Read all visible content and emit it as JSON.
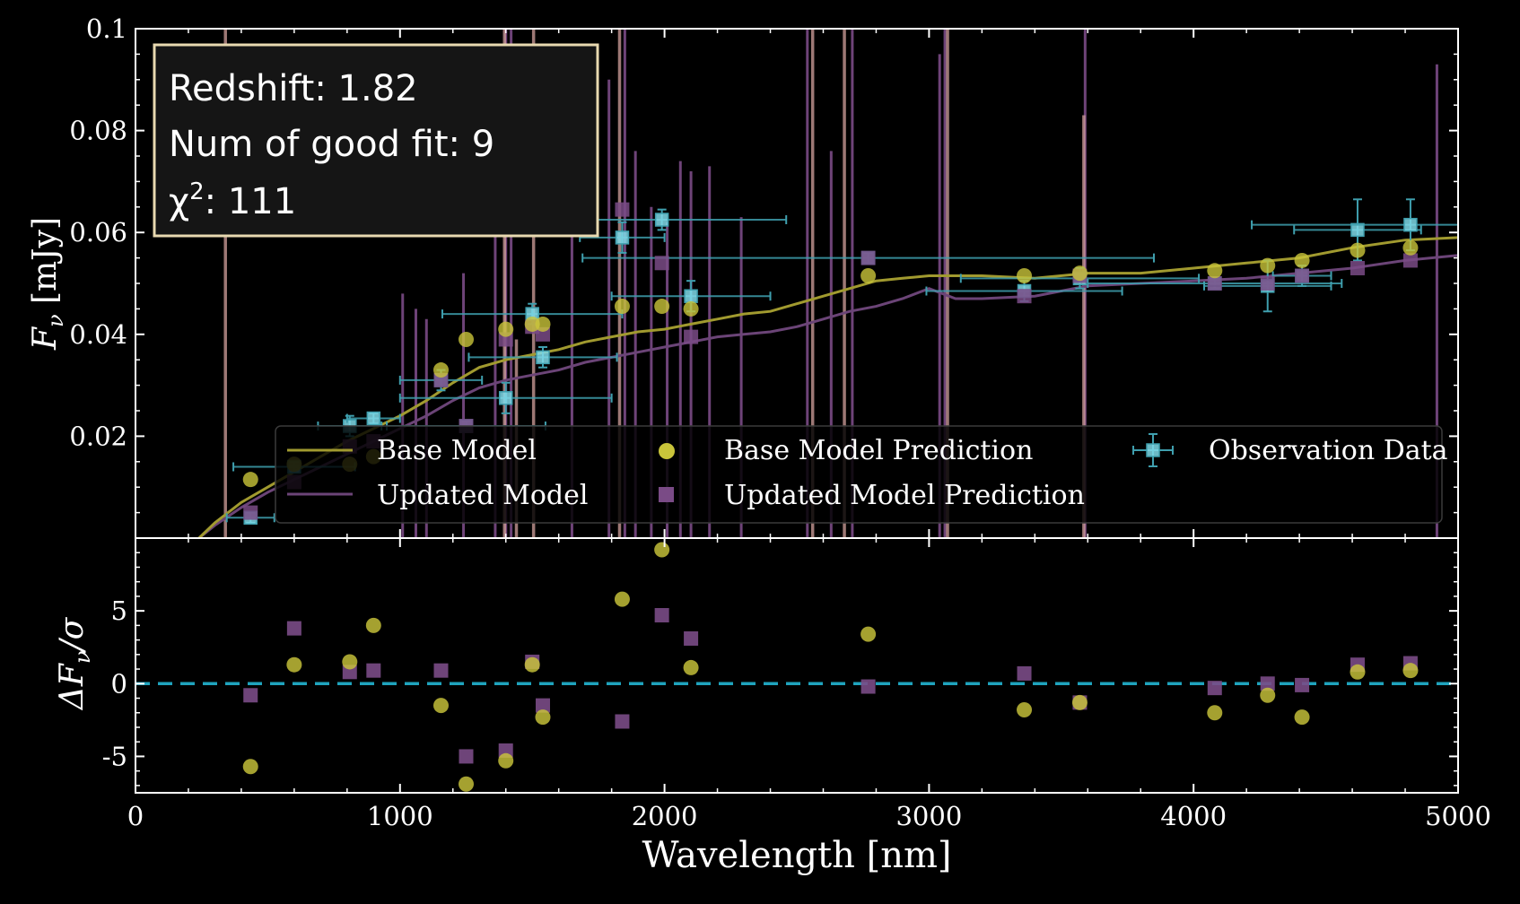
{
  "chart_data": {
    "type": "scatter",
    "xlabel": "Wavelength [nm]",
    "xlim": [
      0,
      5000
    ],
    "x_ticks": [
      {
        "value": 0,
        "label": "0"
      },
      {
        "value": 1000,
        "label": "1000"
      },
      {
        "value": 2000,
        "label": "2000"
      },
      {
        "value": 3000,
        "label": "3000"
      },
      {
        "value": 4000,
        "label": "4000"
      },
      {
        "value": 5000,
        "label": "5000"
      }
    ],
    "top_panel": {
      "ylabel_main": "F",
      "ylabel_sub": "ν",
      "ylabel_unit": " [mJy]",
      "ylim": [
        0,
        0.1
      ],
      "y_ticks": [
        {
          "value": 0.02,
          "label": "0.02"
        },
        {
          "value": 0.04,
          "label": "0.04"
        },
        {
          "value": 0.06,
          "label": "0.06"
        },
        {
          "value": 0.08,
          "label": "0.08"
        },
        {
          "value": 0.1,
          "label": "0.1"
        }
      ],
      "info_box": {
        "redshift": "Redshift: 1.82",
        "good_fit": "Num of good fit: 9",
        "chi_label": "χ",
        "chi_sup": "2",
        "chi_value": ": 111"
      },
      "legend": {
        "base_model": "Base Model",
        "updated_model": "Updated Model",
        "base_prediction": "Base Model Prediction",
        "updated_prediction": "Updated Model Prediction",
        "observation": "Observation Data"
      },
      "observations": [
        {
          "x": 435,
          "y": 0.004,
          "xerr": 90,
          "yerr": 0.001
        },
        {
          "x": 600,
          "y": 0.014,
          "xerr": 230,
          "yerr": 0.001
        },
        {
          "x": 810,
          "y": 0.022,
          "xerr": 120,
          "yerr": 0.002
        },
        {
          "x": 900,
          "y": 0.0235,
          "xerr": 100,
          "yerr": 0.001
        },
        {
          "x": 1155,
          "y": 0.031,
          "xerr": 155,
          "yerr": 0.002
        },
        {
          "x": 1250,
          "y": 0.022,
          "xerr": 300,
          "yerr": 0.001
        },
        {
          "x": 1400,
          "y": 0.0275,
          "xerr": 400,
          "yerr": 0.003
        },
        {
          "x": 1500,
          "y": 0.044,
          "xerr": 340,
          "yerr": 0.002
        },
        {
          "x": 1540,
          "y": 0.0355,
          "xerr": 280,
          "yerr": 0.002
        },
        {
          "x": 1840,
          "y": 0.059,
          "xerr": 160,
          "yerr": 0.003
        },
        {
          "x": 1990,
          "y": 0.0625,
          "xerr": 470,
          "yerr": 0.002
        },
        {
          "x": 2100,
          "y": 0.0475,
          "xerr": 300,
          "yerr": 0.003
        },
        {
          "x": 2770,
          "y": 0.055,
          "xerr": 1080,
          "yerr": 0.001
        },
        {
          "x": 3360,
          "y": 0.0485,
          "xerr": 370,
          "yerr": 0.002
        },
        {
          "x": 3570,
          "y": 0.051,
          "xerr": 450,
          "yerr": 0.002
        },
        {
          "x": 4080,
          "y": 0.05,
          "xerr": 480,
          "yerr": 0.001
        },
        {
          "x": 4280,
          "y": 0.0495,
          "xerr": 240,
          "yerr": 0.005
        },
        {
          "x": 4410,
          "y": 0.0515,
          "xerr": 110,
          "yerr": 0.002
        },
        {
          "x": 4620,
          "y": 0.0605,
          "xerr": 240,
          "yerr": 0.006
        },
        {
          "x": 4820,
          "y": 0.0615,
          "xerr": 600,
          "yerr": 0.005
        }
      ],
      "base_predictions": [
        {
          "x": 435,
          "y": 0.0115
        },
        {
          "x": 600,
          "y": 0.0145
        },
        {
          "x": 810,
          "y": 0.0145
        },
        {
          "x": 900,
          "y": 0.016
        },
        {
          "x": 1155,
          "y": 0.033
        },
        {
          "x": 1250,
          "y": 0.039
        },
        {
          "x": 1400,
          "y": 0.041
        },
        {
          "x": 1500,
          "y": 0.042
        },
        {
          "x": 1540,
          "y": 0.042
        },
        {
          "x": 1840,
          "y": 0.0455
        },
        {
          "x": 1990,
          "y": 0.0455
        },
        {
          "x": 2100,
          "y": 0.045
        },
        {
          "x": 2770,
          "y": 0.0515
        },
        {
          "x": 3360,
          "y": 0.0515
        },
        {
          "x": 3570,
          "y": 0.052
        },
        {
          "x": 4080,
          "y": 0.0525
        },
        {
          "x": 4280,
          "y": 0.0535
        },
        {
          "x": 4410,
          "y": 0.0545
        },
        {
          "x": 4620,
          "y": 0.0565
        },
        {
          "x": 4820,
          "y": 0.057
        }
      ],
      "updated_predictions": [
        {
          "x": 435,
          "y": 0.005
        },
        {
          "x": 600,
          "y": 0.011
        },
        {
          "x": 810,
          "y": 0.018
        },
        {
          "x": 900,
          "y": 0.019
        },
        {
          "x": 1155,
          "y": 0.031
        },
        {
          "x": 1250,
          "y": 0.022
        },
        {
          "x": 1400,
          "y": 0.039
        },
        {
          "x": 1500,
          "y": 0.0415
        },
        {
          "x": 1540,
          "y": 0.04
        },
        {
          "x": 1840,
          "y": 0.0645
        },
        {
          "x": 1990,
          "y": 0.054
        },
        {
          "x": 2100,
          "y": 0.0395
        },
        {
          "x": 2770,
          "y": 0.055
        },
        {
          "x": 3360,
          "y": 0.0475
        },
        {
          "x": 3570,
          "y": 0.0515
        },
        {
          "x": 4080,
          "y": 0.05
        },
        {
          "x": 4280,
          "y": 0.05
        },
        {
          "x": 4410,
          "y": 0.0515
        },
        {
          "x": 4620,
          "y": 0.053
        },
        {
          "x": 4820,
          "y": 0.0545
        }
      ],
      "base_model_curve": [
        [
          240,
          0.0
        ],
        [
          300,
          0.003
        ],
        [
          400,
          0.007
        ],
        [
          500,
          0.01
        ],
        [
          600,
          0.013
        ],
        [
          700,
          0.016
        ],
        [
          800,
          0.019
        ],
        [
          900,
          0.0215
        ],
        [
          1000,
          0.024
        ],
        [
          1100,
          0.027
        ],
        [
          1200,
          0.0305
        ],
        [
          1300,
          0.0335
        ],
        [
          1400,
          0.035
        ],
        [
          1500,
          0.036
        ],
        [
          1600,
          0.037
        ],
        [
          1700,
          0.0385
        ],
        [
          1800,
          0.0395
        ],
        [
          1900,
          0.0405
        ],
        [
          2000,
          0.041
        ],
        [
          2100,
          0.042
        ],
        [
          2200,
          0.043
        ],
        [
          2300,
          0.044
        ],
        [
          2400,
          0.0445
        ],
        [
          2500,
          0.046
        ],
        [
          2600,
          0.0475
        ],
        [
          2700,
          0.049
        ],
        [
          2800,
          0.0505
        ],
        [
          2900,
          0.051
        ],
        [
          3000,
          0.0515
        ],
        [
          3200,
          0.0515
        ],
        [
          3400,
          0.051
        ],
        [
          3600,
          0.052
        ],
        [
          3800,
          0.052
        ],
        [
          4000,
          0.053
        ],
        [
          4200,
          0.054
        ],
        [
          4400,
          0.055
        ],
        [
          4600,
          0.057
        ],
        [
          4800,
          0.0585
        ],
        [
          5000,
          0.059
        ]
      ],
      "updated_model_curve": [
        [
          240,
          0.0
        ],
        [
          300,
          0.0025
        ],
        [
          400,
          0.006
        ],
        [
          500,
          0.009
        ],
        [
          600,
          0.0115
        ],
        [
          700,
          0.014
        ],
        [
          800,
          0.0165
        ],
        [
          900,
          0.019
        ],
        [
          1000,
          0.0215
        ],
        [
          1100,
          0.024
        ],
        [
          1200,
          0.027
        ],
        [
          1300,
          0.0295
        ],
        [
          1400,
          0.031
        ],
        [
          1500,
          0.032
        ],
        [
          1600,
          0.033
        ],
        [
          1700,
          0.0345
        ],
        [
          1800,
          0.0355
        ],
        [
          1900,
          0.0365
        ],
        [
          2000,
          0.0375
        ],
        [
          2100,
          0.0385
        ],
        [
          2200,
          0.0395
        ],
        [
          2300,
          0.04
        ],
        [
          2400,
          0.0405
        ],
        [
          2500,
          0.0415
        ],
        [
          2600,
          0.043
        ],
        [
          2700,
          0.0445
        ],
        [
          2800,
          0.0455
        ],
        [
          2900,
          0.047
        ],
        [
          3000,
          0.049
        ],
        [
          3100,
          0.047
        ],
        [
          3200,
          0.047
        ],
        [
          3400,
          0.0475
        ],
        [
          3600,
          0.0495
        ],
        [
          3800,
          0.05
        ],
        [
          4000,
          0.0505
        ],
        [
          4200,
          0.051
        ],
        [
          4400,
          0.052
        ],
        [
          4600,
          0.053
        ],
        [
          4800,
          0.0545
        ],
        [
          5000,
          0.0555
        ]
      ],
      "base_lines": [
        {
          "x": 340,
          "top": 0.12
        },
        {
          "x": 1395,
          "top": 0.12
        },
        {
          "x": 1505,
          "top": 0.12
        },
        {
          "x": 1830,
          "top": 0.12
        },
        {
          "x": 2560,
          "top": 0.12
        },
        {
          "x": 2680,
          "top": 0.12
        },
        {
          "x": 3070,
          "top": 0.12
        },
        {
          "x": 3585,
          "top": 0.083
        },
        {
          "x": 1440,
          "top": 0.039
        }
      ],
      "updated_lines": [
        {
          "x": 1010,
          "top": 0.048
        },
        {
          "x": 1060,
          "top": 0.045
        },
        {
          "x": 1100,
          "top": 0.043
        },
        {
          "x": 1240,
          "top": 0.052
        },
        {
          "x": 1360,
          "top": 0.065
        },
        {
          "x": 1400,
          "top": 0.12
        },
        {
          "x": 1420,
          "top": 0.12
        },
        {
          "x": 1650,
          "top": 0.078
        },
        {
          "x": 1790,
          "top": 0.09
        },
        {
          "x": 1850,
          "top": 0.12
        },
        {
          "x": 1890,
          "top": 0.076
        },
        {
          "x": 1950,
          "top": 0.065
        },
        {
          "x": 2010,
          "top": 0.062
        },
        {
          "x": 2060,
          "top": 0.074
        },
        {
          "x": 2100,
          "top": 0.072
        },
        {
          "x": 2170,
          "top": 0.073
        },
        {
          "x": 2290,
          "top": 0.063
        },
        {
          "x": 2540,
          "top": 0.12
        },
        {
          "x": 2630,
          "top": 0.076
        },
        {
          "x": 2710,
          "top": 0.12
        },
        {
          "x": 3040,
          "top": 0.095
        },
        {
          "x": 3060,
          "top": 0.12
        },
        {
          "x": 3590,
          "top": 0.12
        },
        {
          "x": 4920,
          "top": 0.093
        }
      ]
    },
    "bottom_panel": {
      "ylabel_main": "ΔF",
      "ylabel_sub": "ν",
      "ylabel_div": "/σ",
      "ylim": [
        -7.5,
        10
      ],
      "y_ticks": [
        {
          "value": 5,
          "label": "5"
        },
        {
          "value": 0,
          "label": "0"
        },
        {
          "value": -5,
          "label": "-5"
        }
      ],
      "zero_line": 0,
      "base_residuals": [
        {
          "x": 435,
          "y": -5.7
        },
        {
          "x": 600,
          "y": 1.3
        },
        {
          "x": 810,
          "y": 1.5
        },
        {
          "x": 900,
          "y": 4.0
        },
        {
          "x": 1155,
          "y": -1.5
        },
        {
          "x": 1250,
          "y": -6.9
        },
        {
          "x": 1400,
          "y": -5.3
        },
        {
          "x": 1500,
          "y": 1.3
        },
        {
          "x": 1540,
          "y": -2.3
        },
        {
          "x": 1840,
          "y": 5.8
        },
        {
          "x": 1990,
          "y": 9.2
        },
        {
          "x": 2100,
          "y": 1.1
        },
        {
          "x": 2770,
          "y": 3.4
        },
        {
          "x": 3360,
          "y": -1.8
        },
        {
          "x": 3570,
          "y": -1.3
        },
        {
          "x": 4080,
          "y": -2.0
        },
        {
          "x": 4280,
          "y": -0.8
        },
        {
          "x": 4410,
          "y": -2.3
        },
        {
          "x": 4620,
          "y": 0.8
        },
        {
          "x": 4820,
          "y": 0.9
        }
      ],
      "updated_residuals": [
        {
          "x": 435,
          "y": -0.8
        },
        {
          "x": 600,
          "y": 3.8
        },
        {
          "x": 810,
          "y": 0.8
        },
        {
          "x": 900,
          "y": 0.9
        },
        {
          "x": 1155,
          "y": 0.9
        },
        {
          "x": 1250,
          "y": -5.0
        },
        {
          "x": 1400,
          "y": -4.6
        },
        {
          "x": 1500,
          "y": 1.5
        },
        {
          "x": 1540,
          "y": -1.5
        },
        {
          "x": 1840,
          "y": -2.6
        },
        {
          "x": 1990,
          "y": 4.7
        },
        {
          "x": 2100,
          "y": 3.1
        },
        {
          "x": 2770,
          "y": -0.2
        },
        {
          "x": 3360,
          "y": 0.7
        },
        {
          "x": 3570,
          "y": -1.3
        },
        {
          "x": 4080,
          "y": -0.3
        },
        {
          "x": 4280,
          "y": 0.0
        },
        {
          "x": 4410,
          "y": -0.1
        },
        {
          "x": 4620,
          "y": 1.3
        },
        {
          "x": 4820,
          "y": 1.4
        }
      ]
    },
    "colors": {
      "base": "#c9c43a",
      "base_line": "#a19a2f",
      "updated": "#7a4b86",
      "updated_line": "#6b4477",
      "spike_base": "#d2a09c",
      "observation": "#7fd9e8",
      "obs_err": "#3f9fae",
      "zero_line": "#1fa3bd"
    }
  }
}
